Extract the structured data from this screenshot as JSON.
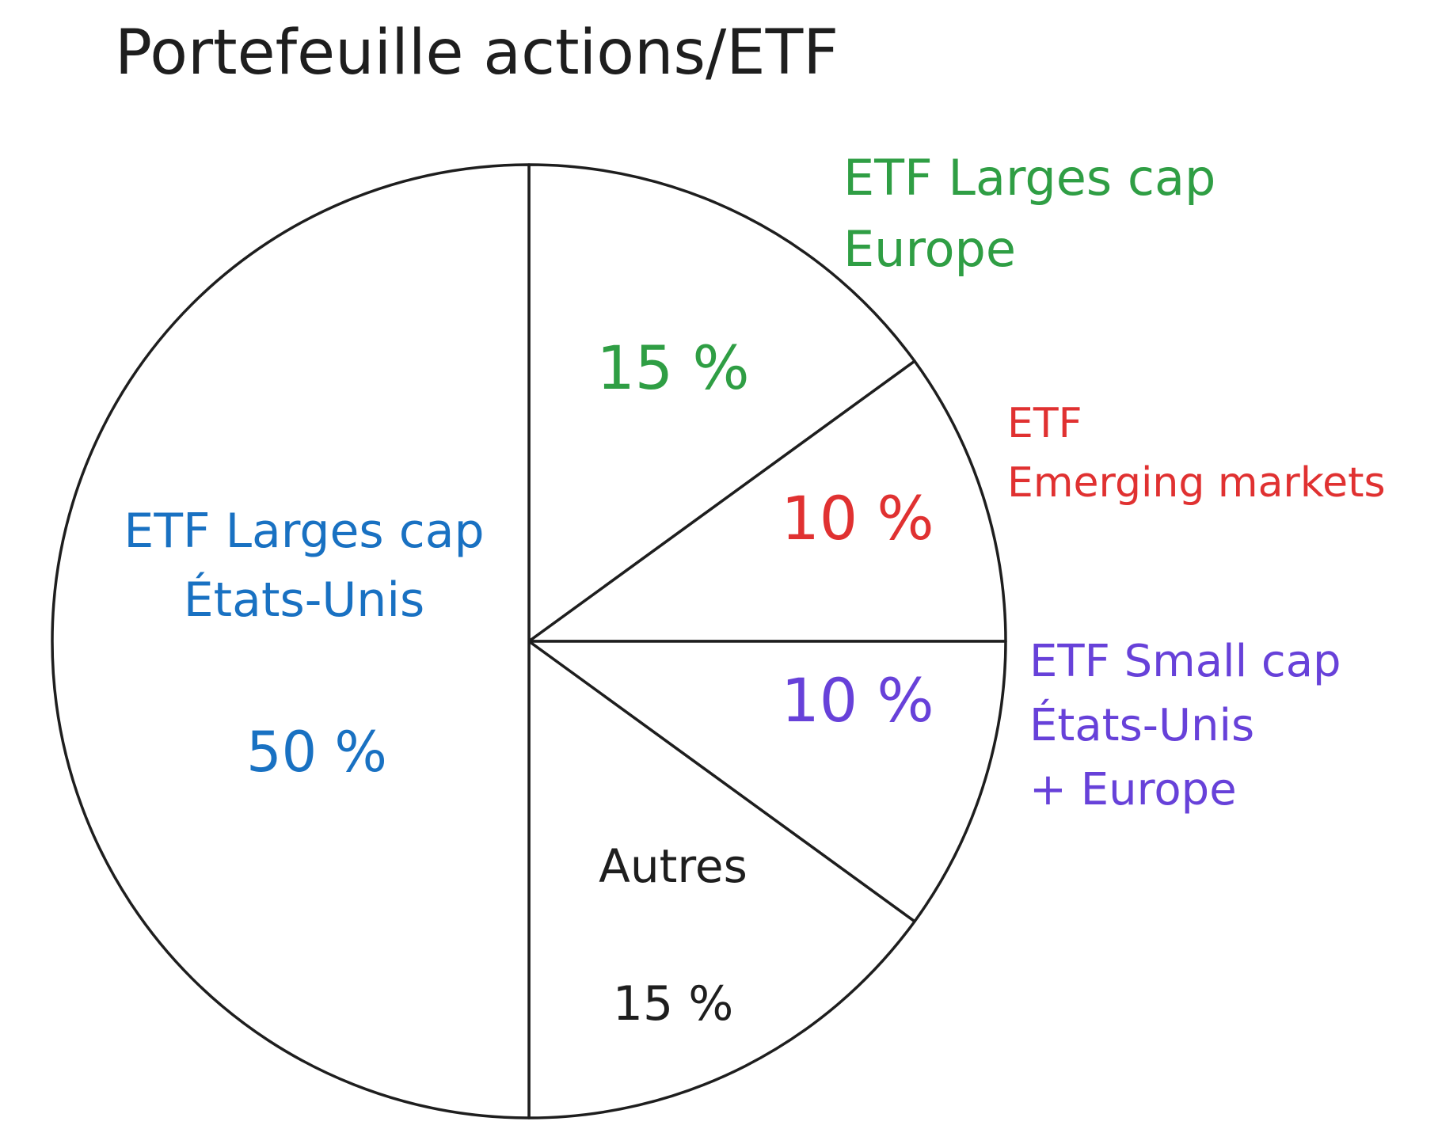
{
  "chart_data": {
    "type": "pie",
    "title": "Portefeuille actions/ETF",
    "categories": [
      "ETF Larges cap\nEurope",
      "ETF\nEmerging markets",
      "ETF Small cap\nÉtats-Unis\n+ Europe",
      "Autres",
      "ETF Larges cap\nÉtats-Unis"
    ],
    "values": [
      15,
      10,
      10,
      15,
      50
    ],
    "value_labels": [
      "15 %",
      "10 %",
      "10 %",
      "15 %",
      "50 %"
    ],
    "colors": [
      "#2f9e44",
      "#e03131",
      "#6741d9",
      "#1e1e1e",
      "#1971c2"
    ],
    "start_angle": 90,
    "direction": "clockwise"
  }
}
